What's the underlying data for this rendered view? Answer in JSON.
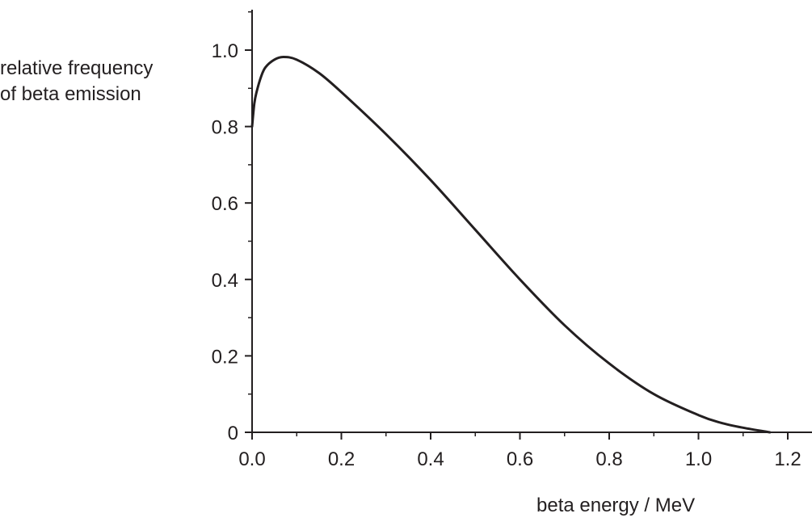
{
  "chart_data": {
    "type": "line",
    "title": "",
    "ylabel_lines": [
      "relative frequency",
      "of beta emission"
    ],
    "xlabel": "beta energy / MeV",
    "xlim": [
      0,
      1.3
    ],
    "ylim": [
      0,
      1.1
    ],
    "x_ticks": [
      0.0,
      0.2,
      0.4,
      0.6,
      0.8,
      1.0,
      1.2
    ],
    "x_tick_labels": [
      "0.0",
      "0.2",
      "0.4",
      "0.6",
      "0.8",
      "1.0",
      "1.2"
    ],
    "y_ticks": [
      0,
      0.2,
      0.4,
      0.6,
      0.8,
      1.0
    ],
    "y_tick_labels": [
      "0",
      "0.2",
      "0.4",
      "0.6",
      "0.8",
      "1.0"
    ],
    "grid": false,
    "series": [
      {
        "x": [
          0.0,
          0.005,
          0.01,
          0.02,
          0.03,
          0.05,
          0.07,
          0.1,
          0.15,
          0.2,
          0.3,
          0.4,
          0.5,
          0.6,
          0.7,
          0.8,
          0.9,
          1.0,
          1.05,
          1.1,
          1.16
        ],
        "y": [
          0.8,
          0.86,
          0.89,
          0.93,
          0.955,
          0.975,
          0.982,
          0.975,
          0.94,
          0.89,
          0.78,
          0.66,
          0.53,
          0.4,
          0.28,
          0.18,
          0.1,
          0.045,
          0.025,
          0.012,
          0.0
        ]
      }
    ]
  }
}
